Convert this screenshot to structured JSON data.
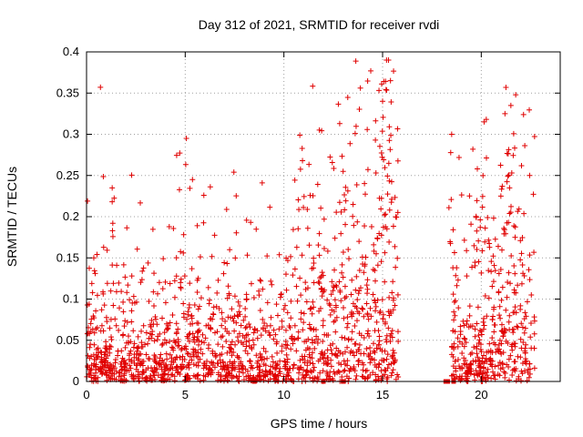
{
  "chart_data": {
    "type": "scatter",
    "title": "Day 312 of 2021, SRMTID for receiver rvdi",
    "xlabel": "GPS time / hours",
    "ylabel": "SRMTID / TECUs",
    "xlim": [
      0,
      24
    ],
    "ylim": [
      0,
      0.4
    ],
    "xticks": [
      0,
      5,
      10,
      15,
      20
    ],
    "xtick_labels": [
      "0",
      "5",
      "10",
      "15",
      "20"
    ],
    "yticks": [
      0,
      0.05,
      0.1,
      0.15,
      0.2,
      0.25,
      0.3,
      0.35,
      0.4
    ],
    "ytick_labels": [
      "0",
      "0.05",
      "0.1",
      "0.15",
      "0.2",
      "0.25",
      "0.3",
      "0.35",
      "0.4"
    ],
    "grid": true,
    "marker": "+",
    "series": [
      {
        "name": "SRMTID",
        "color": "#e00000",
        "envelope": {
          "segments": [
            [
              0,
              15.8
            ],
            [
              18.5,
              22.8
            ]
          ],
          "peaks": [
            {
              "x": 15.2,
              "y": 0.39
            },
            {
              "x": 15.4,
              "y": 0.365
            },
            {
              "x": 15.0,
              "y": 0.34
            },
            {
              "x": 13.0,
              "y": 0.255
            },
            {
              "x": 1.3,
              "y": 0.235
            },
            {
              "x": 21.5,
              "y": 0.335
            },
            {
              "x": 21.2,
              "y": 0.325
            },
            {
              "x": 18.5,
              "y": 0.3
            },
            {
              "x": 19.8,
              "y": 0.258
            }
          ],
          "isolated_zero_points": [
            8.5,
            12.0,
            13.0,
            18.2,
            18.3,
            18.6
          ]
        }
      }
    ]
  }
}
